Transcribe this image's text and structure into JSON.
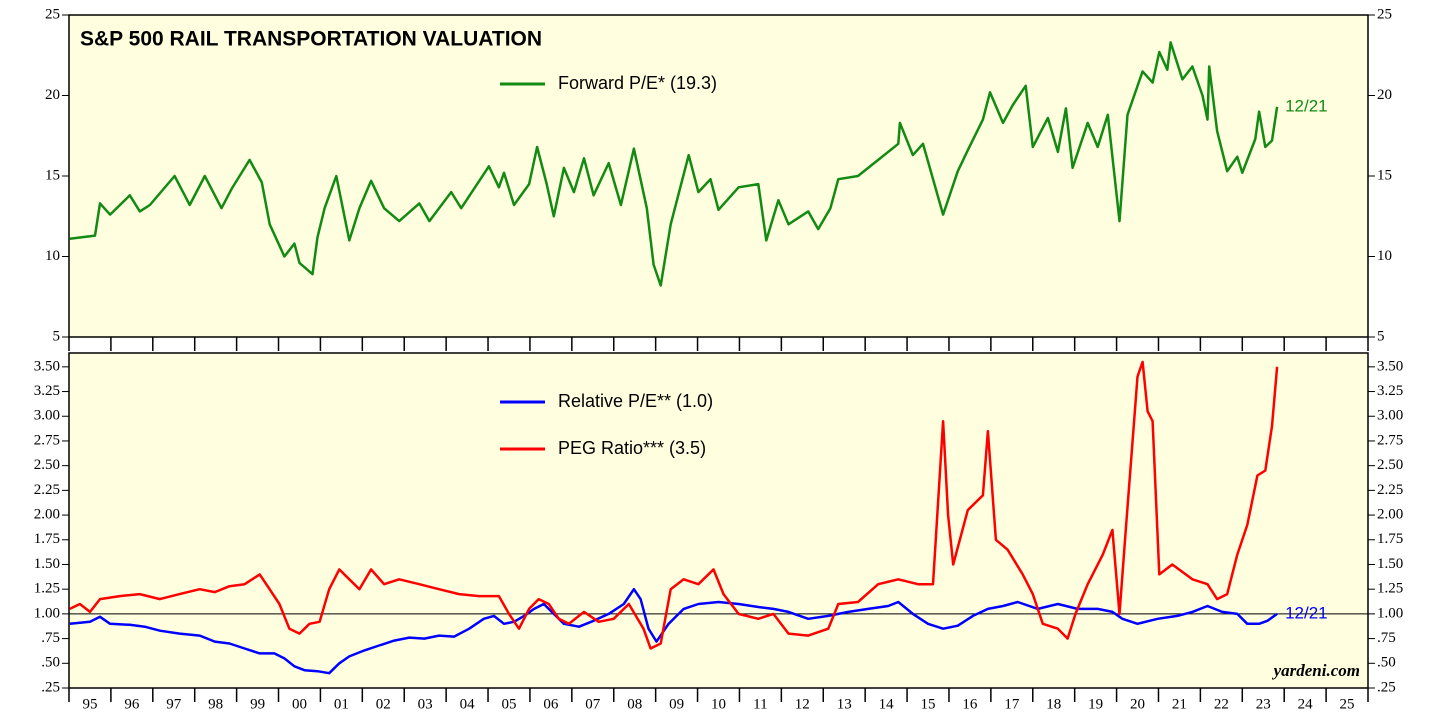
{
  "chart_data": [
    {
      "type": "line",
      "title": "S&P 500 RAIL TRANSPORTATION VALUATION",
      "xlim": [
        1995,
        2026
      ],
      "xticks": [
        1995,
        1996,
        1997,
        1998,
        1999,
        2000,
        2001,
        2002,
        2003,
        2004,
        2005,
        2006,
        2007,
        2008,
        2009,
        2010,
        2011,
        2012,
        2013,
        2014,
        2015,
        2016,
        2017,
        2018,
        2019,
        2020,
        2021,
        2022,
        2023,
        2024,
        2025,
        2026
      ],
      "ylim": [
        5,
        25
      ],
      "yticks": [
        5,
        10,
        15,
        20,
        25
      ],
      "y2lim": [
        5,
        25
      ],
      "y2ticks": [
        5,
        10,
        15,
        20,
        25
      ],
      "series": [
        {
          "name": "Forward P/E* (19.3)",
          "color": "#138a13",
          "end_label": "12/21",
          "x": [
            1995.02,
            1995.62,
            1995.74,
            1995.98,
            1996.45,
            1996.69,
            1996.93,
            1997.52,
            1997.76,
            1997.88,
            1998.24,
            1998.64,
            1998.88,
            1999.31,
            1999.6,
            1999.79,
            2000.14,
            2000.38,
            2000.5,
            2000.81,
            2000.93,
            2001.1,
            2001.38,
            2001.69,
            2001.93,
            2002.21,
            2002.52,
            2002.88,
            2003.36,
            2003.6,
            2004.12,
            2004.36,
            2005.02,
            2005.26,
            2005.38,
            2005.62,
            2005.98,
            2006.17,
            2006.4,
            2006.57,
            2006.81,
            2007.05,
            2007.29,
            2007.52,
            2007.88,
            2008.17,
            2008.48,
            2008.79,
            2008.95,
            2009.12,
            2009.36,
            2009.79,
            2010.02,
            2010.31,
            2010.5,
            2010.98,
            2011.45,
            2011.64,
            2011.93,
            2012.17,
            2012.64,
            2012.88,
            2013.17,
            2013.36,
            2013.83,
            2014.31,
            2014.79,
            2014.83,
            2015.14,
            2015.38,
            2015.86,
            2016.21,
            2016.45,
            2016.81,
            2016.98,
            2017.29,
            2017.52,
            2017.83,
            2018.0,
            2018.36,
            2018.6,
            2018.79,
            2018.95,
            2019.31,
            2019.55,
            2019.79,
            2020.07,
            2020.26,
            2020.62,
            2020.86,
            2021.02,
            2021.21,
            2021.29,
            2021.57,
            2021.81,
            2022.05,
            2022.17,
            2022.21,
            2022.4,
            2022.64,
            2022.88,
            2023.0,
            2023.31,
            2023.4,
            2023.55,
            2023.71,
            2023.83
          ],
          "values": [
            11.1,
            11.3,
            13.3,
            12.6,
            13.8,
            12.8,
            13.2,
            15.0,
            13.8,
            13.2,
            15.0,
            13.0,
            14.2,
            16.0,
            14.6,
            12.0,
            10.0,
            10.8,
            9.6,
            8.9,
            11.2,
            13.0,
            15.0,
            11.0,
            13.0,
            14.7,
            13.0,
            12.2,
            13.3,
            12.2,
            14.0,
            13.0,
            15.6,
            14.3,
            15.2,
            13.2,
            14.5,
            16.8,
            14.5,
            12.5,
            15.5,
            14.0,
            16.1,
            13.8,
            15.8,
            13.2,
            16.7,
            13.0,
            9.5,
            8.2,
            12.0,
            16.3,
            14.0,
            14.8,
            12.9,
            14.3,
            14.5,
            11.0,
            13.5,
            12.0,
            12.8,
            11.7,
            13.0,
            14.8,
            15.0,
            16.0,
            17.0,
            18.3,
            16.3,
            17.0,
            12.6,
            15.3,
            16.6,
            18.5,
            20.2,
            18.3,
            19.4,
            20.6,
            16.8,
            18.6,
            16.5,
            19.2,
            15.5,
            18.3,
            16.8,
            18.8,
            12.2,
            18.8,
            21.5,
            20.8,
            22.7,
            21.6,
            23.3,
            21.0,
            21.8,
            20.0,
            18.5,
            21.8,
            17.8,
            15.3,
            16.2,
            15.2,
            17.3,
            19.0,
            16.8,
            17.2,
            19.3
          ]
        }
      ]
    },
    {
      "type": "line",
      "xlim": [
        1995,
        2026
      ],
      "xticks": [
        1995,
        1996,
        1997,
        1998,
        1999,
        2000,
        2001,
        2002,
        2003,
        2004,
        2005,
        2006,
        2007,
        2008,
        2009,
        2010,
        2011,
        2012,
        2013,
        2014,
        2015,
        2016,
        2017,
        2018,
        2019,
        2020,
        2021,
        2022,
        2023,
        2024,
        2025,
        2026
      ],
      "xtick_labels": [
        {
          "value": 1995.5,
          "label": "95"
        },
        {
          "value": 1996.5,
          "label": "96"
        },
        {
          "value": 1997.5,
          "label": "97"
        },
        {
          "value": 1998.5,
          "label": "98"
        },
        {
          "value": 1999.5,
          "label": "99"
        },
        {
          "value": 2000.5,
          "label": "00"
        },
        {
          "value": 2001.5,
          "label": "01"
        },
        {
          "value": 2002.5,
          "label": "02"
        },
        {
          "value": 2003.5,
          "label": "03"
        },
        {
          "value": 2004.5,
          "label": "04"
        },
        {
          "value": 2005.5,
          "label": "05"
        },
        {
          "value": 2006.5,
          "label": "06"
        },
        {
          "value": 2007.5,
          "label": "07"
        },
        {
          "value": 2008.5,
          "label": "08"
        },
        {
          "value": 2009.5,
          "label": "09"
        },
        {
          "value": 2010.5,
          "label": "10"
        },
        {
          "value": 2011.5,
          "label": "11"
        },
        {
          "value": 2012.5,
          "label": "12"
        },
        {
          "value": 2013.5,
          "label": "13"
        },
        {
          "value": 2014.5,
          "label": "14"
        },
        {
          "value": 2015.5,
          "label": "15"
        },
        {
          "value": 2016.5,
          "label": "16"
        },
        {
          "value": 2017.5,
          "label": "17"
        },
        {
          "value": 2018.5,
          "label": "18"
        },
        {
          "value": 2019.5,
          "label": "19"
        },
        {
          "value": 2020.5,
          "label": "20"
        },
        {
          "value": 2021.5,
          "label": "21"
        },
        {
          "value": 2022.5,
          "label": "22"
        },
        {
          "value": 2023.5,
          "label": "23"
        },
        {
          "value": 2024.5,
          "label": "24"
        },
        {
          "value": 2025.5,
          "label": "25"
        }
      ],
      "ylim": [
        0.25,
        3.64
      ],
      "yticks": [
        {
          "value": 0.25,
          "label": ".25"
        },
        {
          "value": 0.5,
          "label": ".50"
        },
        {
          "value": 0.75,
          "label": ".75"
        },
        {
          "value": 1,
          "label": "1.00"
        },
        {
          "value": 1.25,
          "label": "1.25"
        },
        {
          "value": 1.5,
          "label": "1.50"
        },
        {
          "value": 1.75,
          "label": "1.75"
        },
        {
          "value": 2,
          "label": "2.00"
        },
        {
          "value": 2.25,
          "label": "2.25"
        },
        {
          "value": 2.5,
          "label": "2.50"
        },
        {
          "value": 2.75,
          "label": "2.75"
        },
        {
          "value": 3,
          "label": "3.00"
        },
        {
          "value": 3.25,
          "label": "3.25"
        },
        {
          "value": 3.5,
          "label": "3.50"
        }
      ],
      "y2lim": [
        0.25,
        3.64
      ],
      "y2ticks": [
        {
          "value": 0.25,
          "label": ".25"
        },
        {
          "value": 0.5,
          "label": ".50"
        },
        {
          "value": 0.75,
          "label": ".75"
        },
        {
          "value": 1,
          "label": "1.00"
        },
        {
          "value": 1.25,
          "label": "1.25"
        },
        {
          "value": 1.5,
          "label": "1.50"
        },
        {
          "value": 1.75,
          "label": "1.75"
        },
        {
          "value": 2,
          "label": "2.00"
        },
        {
          "value": 2.25,
          "label": "2.25"
        },
        {
          "value": 2.5,
          "label": "2.50"
        },
        {
          "value": 2.75,
          "label": "2.75"
        },
        {
          "value": 3,
          "label": "3.00"
        },
        {
          "value": 3.25,
          "label": "3.25"
        },
        {
          "value": 3.5,
          "label": "3.50"
        }
      ],
      "reference_line": 1,
      "source": "yardeni.com",
      "series": [
        {
          "name": "Relative P/E** (1.0)",
          "color": "#0000ff",
          "end_label": "12/21",
          "x": [
            1995.02,
            1995.5,
            1995.74,
            1995.98,
            1996.45,
            1996.81,
            1997.17,
            1997.64,
            1998.12,
            1998.48,
            1998.83,
            1999.19,
            1999.55,
            1999.9,
            2000.14,
            2000.38,
            2000.62,
            2000.93,
            2001.21,
            2001.45,
            2001.69,
            2002.05,
            2002.4,
            2002.76,
            2003.12,
            2003.48,
            2003.83,
            2004.19,
            2004.55,
            2004.9,
            2005.14,
            2005.38,
            2005.62,
            2005.86,
            2006.1,
            2006.33,
            2006.57,
            2006.81,
            2007.17,
            2007.52,
            2007.88,
            2008.24,
            2008.48,
            2008.64,
            2008.83,
            2009.02,
            2009.31,
            2009.67,
            2010.02,
            2010.5,
            2010.98,
            2011.45,
            2011.81,
            2012.17,
            2012.64,
            2013.12,
            2013.6,
            2014.07,
            2014.55,
            2014.79,
            2015.14,
            2015.5,
            2015.86,
            2016.21,
            2016.57,
            2016.93,
            2017.29,
            2017.64,
            2018.12,
            2018.6,
            2019.07,
            2019.55,
            2019.9,
            2020.14,
            2020.5,
            2020.98,
            2021.45,
            2021.81,
            2022.17,
            2022.52,
            2022.88,
            2023.12,
            2023.4,
            2023.6,
            2023.83
          ],
          "values": [
            0.9,
            0.92,
            0.97,
            0.9,
            0.89,
            0.87,
            0.83,
            0.8,
            0.78,
            0.72,
            0.7,
            0.65,
            0.6,
            0.6,
            0.55,
            0.47,
            0.43,
            0.42,
            0.4,
            0.5,
            0.57,
            0.63,
            0.68,
            0.73,
            0.76,
            0.75,
            0.78,
            0.77,
            0.85,
            0.95,
            0.98,
            0.9,
            0.92,
            0.98,
            1.05,
            1.1,
            1.0,
            0.9,
            0.87,
            0.93,
            1.0,
            1.1,
            1.25,
            1.15,
            0.85,
            0.72,
            0.9,
            1.05,
            1.1,
            1.12,
            1.1,
            1.07,
            1.05,
            1.02,
            0.95,
            0.98,
            1.02,
            1.05,
            1.08,
            1.12,
            1.0,
            0.9,
            0.85,
            0.88,
            0.98,
            1.05,
            1.08,
            1.12,
            1.05,
            1.1,
            1.05,
            1.05,
            1.02,
            0.95,
            0.9,
            0.95,
            0.98,
            1.02,
            1.08,
            1.02,
            1.0,
            0.9,
            0.9,
            0.93,
            1.0
          ]
        },
        {
          "name": "PEG Ratio*** (3.5)",
          "color": "#ff0000",
          "x": [
            1995.02,
            1995.26,
            1995.5,
            1995.74,
            1996.21,
            1996.69,
            1997.17,
            1997.64,
            1998.12,
            1998.48,
            1998.83,
            1999.19,
            1999.55,
            1999.74,
            2000.02,
            2000.26,
            2000.5,
            2000.74,
            2000.98,
            2001.21,
            2001.45,
            2001.69,
            2001.93,
            2002.21,
            2002.52,
            2002.88,
            2003.36,
            2003.83,
            2004.31,
            2004.79,
            2005.26,
            2005.5,
            2005.74,
            2005.98,
            2006.21,
            2006.45,
            2006.69,
            2006.93,
            2007.29,
            2007.64,
            2008.0,
            2008.36,
            2008.71,
            2008.88,
            2009.12,
            2009.36,
            2009.67,
            2010.02,
            2010.38,
            2010.62,
            2010.98,
            2011.45,
            2011.81,
            2012.17,
            2012.64,
            2013.12,
            2013.36,
            2013.83,
            2014.31,
            2014.79,
            2015.26,
            2015.62,
            2015.86,
            2015.98,
            2016.1,
            2016.45,
            2016.81,
            2016.93,
            2017.12,
            2017.4,
            2017.76,
            2018.0,
            2018.24,
            2018.6,
            2018.83,
            2019.02,
            2019.31,
            2019.67,
            2019.9,
            2020.07,
            2020.21,
            2020.5,
            2020.62,
            2020.74,
            2020.86,
            2021.02,
            2021.33,
            2021.81,
            2022.17,
            2022.4,
            2022.64,
            2022.88,
            2023.12,
            2023.36,
            2023.55,
            2023.71,
            2023.83
          ],
          "values": [
            1.05,
            1.1,
            1.02,
            1.15,
            1.18,
            1.2,
            1.15,
            1.2,
            1.25,
            1.22,
            1.28,
            1.3,
            1.4,
            1.28,
            1.1,
            0.85,
            0.8,
            0.9,
            0.92,
            1.25,
            1.45,
            1.35,
            1.25,
            1.45,
            1.3,
            1.35,
            1.3,
            1.25,
            1.2,
            1.18,
            1.18,
            1.0,
            0.85,
            1.05,
            1.15,
            1.1,
            0.95,
            0.9,
            1.02,
            0.92,
            0.95,
            1.1,
            0.85,
            0.65,
            0.7,
            1.25,
            1.35,
            1.3,
            1.45,
            1.2,
            1.0,
            0.95,
            1.0,
            0.8,
            0.78,
            0.85,
            1.1,
            1.12,
            1.3,
            1.35,
            1.3,
            1.3,
            2.95,
            2.0,
            1.5,
            2.05,
            2.2,
            2.85,
            1.75,
            1.65,
            1.4,
            1.2,
            0.9,
            0.85,
            0.75,
            1.0,
            1.3,
            1.6,
            1.85,
            1.0,
            1.8,
            3.4,
            3.55,
            3.05,
            2.95,
            1.4,
            1.5,
            1.35,
            1.3,
            1.15,
            1.2,
            1.6,
            1.9,
            2.4,
            2.45,
            2.9,
            3.5
          ]
        }
      ]
    }
  ]
}
